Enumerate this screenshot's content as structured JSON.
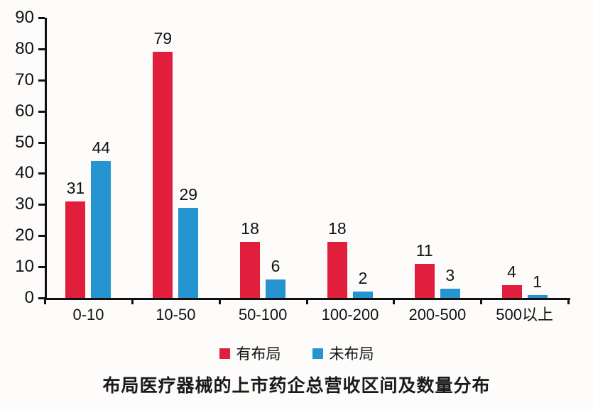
{
  "chart_data": {
    "type": "bar",
    "title": "布局医疗器械的上市药企总营收区间及数量分布",
    "categories": [
      "0-10",
      "10-50",
      "50-100",
      "100-200",
      "200-500",
      "500以上"
    ],
    "series": [
      {
        "name": "有布局",
        "color": "#e11e3c",
        "values": [
          31,
          79,
          18,
          18,
          11,
          4
        ]
      },
      {
        "name": "未布局",
        "color": "#2794d2",
        "values": [
          44,
          29,
          6,
          2,
          3,
          1
        ]
      }
    ],
    "ylim": [
      0,
      90
    ],
    "yticks": [
      0,
      10,
      20,
      30,
      40,
      50,
      60,
      70,
      80,
      90
    ],
    "grid": false,
    "legend_position": "bottom",
    "value_labels": true,
    "xlabel": "",
    "ylabel": ""
  },
  "colors": {
    "axis": "#111111",
    "text": "#111111",
    "background": "#fdfcfb"
  }
}
